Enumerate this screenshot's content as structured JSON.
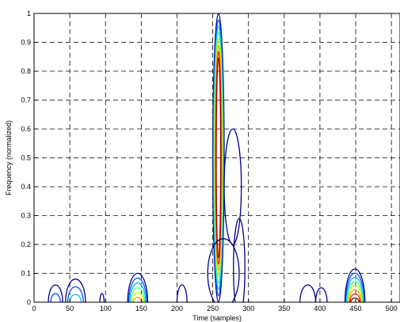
{
  "chart_data": {
    "type": "contour",
    "xlabel": "Time (samples)",
    "ylabel": "Frequency (normalized)",
    "xlim": [
      0,
      512
    ],
    "ylim": [
      0,
      1
    ],
    "x_ticks": [
      0,
      50,
      100,
      150,
      200,
      250,
      300,
      350,
      400,
      450,
      500
    ],
    "y_ticks": [
      0,
      0.1,
      0.2,
      0.3,
      0.4,
      0.5,
      0.6,
      0.7,
      0.8,
      0.9,
      1
    ],
    "x_tick_labels": [
      "0",
      "50",
      "100",
      "150",
      "200",
      "250",
      "300",
      "350",
      "400",
      "450",
      "500"
    ],
    "y_tick_labels": [
      "0",
      "0.1",
      "0.2",
      "0.3",
      "0.4",
      "0.5",
      "0.6",
      "0.7",
      "0.8",
      "0.9",
      "1"
    ],
    "grid": true,
    "level_colors": [
      "#00008f",
      "#0050ff",
      "#00c0ff",
      "#40ff80",
      "#d0ff00",
      "#ffa000",
      "#ff2000",
      "#a00000"
    ],
    "components": [
      {
        "x_center": 258,
        "y_center": 0.5,
        "x_halfwidth": 8,
        "y_halfwidth": 0.5,
        "levels": 8,
        "type": "impulse"
      },
      {
        "x_center": 278,
        "y_center": 0.4,
        "x_halfwidth": 12,
        "y_halfwidth": 0.2,
        "levels": 1,
        "type": "side-lobe"
      },
      {
        "x_center": 287,
        "y_center": 0.12,
        "x_halfwidth": 8,
        "y_halfwidth": 0.17,
        "levels": 1,
        "type": "side-lobe"
      },
      {
        "x_center": 265,
        "y_center": 0.1,
        "x_halfwidth": 22,
        "y_halfwidth": 0.12,
        "levels": 1,
        "type": "side-lobe"
      },
      {
        "x_center": 145,
        "y_center": 0.0,
        "x_halfwidth": 14,
        "y_halfwidth": 0.1,
        "levels": 6,
        "type": "atom"
      },
      {
        "x_center": 449,
        "y_center": 0.0,
        "x_halfwidth": 14,
        "y_halfwidth": 0.115,
        "levels": 8,
        "type": "atom"
      },
      {
        "x_center": 58,
        "y_center": 0.0,
        "x_halfwidth": 14,
        "y_halfwidth": 0.08,
        "levels": 3,
        "type": "atom"
      },
      {
        "x_center": 30,
        "y_center": 0.0,
        "x_halfwidth": 10,
        "y_halfwidth": 0.06,
        "levels": 2,
        "type": "atom"
      },
      {
        "x_center": 383,
        "y_center": 0.0,
        "x_halfwidth": 11,
        "y_halfwidth": 0.06,
        "levels": 1,
        "type": "atom"
      },
      {
        "x_center": 402,
        "y_center": 0.0,
        "x_halfwidth": 8,
        "y_halfwidth": 0.05,
        "levels": 1,
        "type": "atom"
      },
      {
        "x_center": 207,
        "y_center": 0.0,
        "x_halfwidth": 7,
        "y_halfwidth": 0.06,
        "levels": 1,
        "type": "atom"
      },
      {
        "x_center": 95,
        "y_center": 0.0,
        "x_halfwidth": 3,
        "y_halfwidth": 0.03,
        "levels": 1,
        "type": "atom"
      }
    ]
  }
}
